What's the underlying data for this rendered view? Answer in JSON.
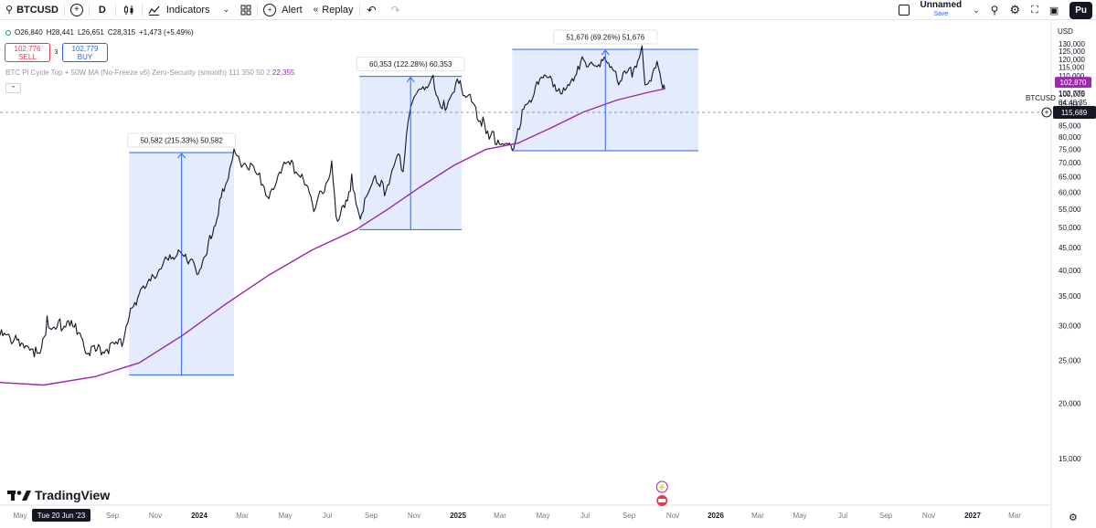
{
  "toolbar": {
    "symbol": "BTCUSD",
    "interval": "D",
    "indicators_label": "Indicators",
    "alert_label": "Alert",
    "replay_label": "Replay",
    "layout_name": "Unnamed",
    "save_label": "Save",
    "publish_label": "Pu"
  },
  "legend": {
    "open": "O26,840",
    "high": "H28,441",
    "low": "L26,651",
    "close": "C28,315",
    "change": "+1,473 (+5.49%)"
  },
  "trade": {
    "sell_price": "102,776",
    "sell_label": "SELL",
    "spread": "3",
    "buy_price": "102,779",
    "buy_label": "BUY"
  },
  "indicator": {
    "label": "BTC Pi Cycle Top + 50W MA (No-Freeze v6) Zero-Security (smooth) 111 350 50 2",
    "value": "22,355"
  },
  "brand": {
    "name": "TradingView"
  },
  "price_axis": {
    "currency": "USD",
    "crosshair_price": "115,689",
    "ma_label": "102,870",
    "last_price": "102,779",
    "countdown": "04:40:35",
    "symbol_label": "BTCUSD"
  },
  "colors": {
    "candle": "#131722",
    "ma": "#9c27b0",
    "range_fill": "#dfe8fb",
    "range_line": "#2962ff",
    "ma_label_bg": "#9c27b0"
  },
  "chart_data": {
    "type": "line",
    "symbol": "BTCUSD",
    "ylim": [
      12000,
      135000
    ],
    "y_scale": "log",
    "y_ticks": [
      15000,
      20000,
      25000,
      30000,
      35000,
      40000,
      45000,
      50000,
      55000,
      60000,
      65000,
      70000,
      75000,
      80000,
      85000,
      90000,
      95000,
      100000,
      105000,
      110000,
      115000,
      120000,
      125000,
      130000
    ],
    "x_ticks": [
      "May",
      "Tue 20 Jun '23",
      "Sep",
      "Nov",
      "2024",
      "Mar",
      "May",
      "Jul",
      "Sep",
      "Nov",
      "2025",
      "Mar",
      "May",
      "Jul",
      "Sep",
      "Nov",
      "2026",
      "Mar",
      "May",
      "Jul",
      "Sep",
      "Nov",
      "2027",
      "Mar"
    ],
    "x_start": "2023-04-20",
    "x_end": "2027-03-25",
    "series": [
      {
        "name": "BTCUSD",
        "points": [
          [
            "2023-04-20",
            28500
          ],
          [
            "2023-05-10",
            27800
          ],
          [
            "2023-06-01",
            27000
          ],
          [
            "2023-06-15",
            25500
          ],
          [
            "2023-06-25",
            30500
          ],
          [
            "2023-07-15",
            30200
          ],
          [
            "2023-08-10",
            29500
          ],
          [
            "2023-08-20",
            26000
          ],
          [
            "2023-09-15",
            26500
          ],
          [
            "2023-10-10",
            27500
          ],
          [
            "2023-10-24",
            34000
          ],
          [
            "2023-11-15",
            37000
          ],
          [
            "2023-12-10",
            43500
          ],
          [
            "2024-01-15",
            42500
          ],
          [
            "2024-01-23",
            39500
          ],
          [
            "2024-02-10",
            47500
          ],
          [
            "2024-02-28",
            62000
          ],
          [
            "2024-03-13",
            73000
          ],
          [
            "2024-04-01",
            69000
          ],
          [
            "2024-04-20",
            64000
          ],
          [
            "2024-05-01",
            58000
          ],
          [
            "2024-05-20",
            70000
          ],
          [
            "2024-06-10",
            68000
          ],
          [
            "2024-07-05",
            55000
          ],
          [
            "2024-07-28",
            68500
          ],
          [
            "2024-08-05",
            50000
          ],
          [
            "2024-08-25",
            64000
          ],
          [
            "2024-09-06",
            53000
          ],
          [
            "2024-09-27",
            65500
          ],
          [
            "2024-10-10",
            60000
          ],
          [
            "2024-10-29",
            72500
          ],
          [
            "2024-11-05",
            68000
          ],
          [
            "2024-11-12",
            88000
          ],
          [
            "2024-11-22",
            99000
          ],
          [
            "2024-12-05",
            101000
          ],
          [
            "2024-12-17",
            107000
          ],
          [
            "2024-12-30",
            92500
          ],
          [
            "2025-01-20",
            106000
          ],
          [
            "2025-02-05",
            98000
          ],
          [
            "2025-02-25",
            86000
          ],
          [
            "2025-03-10",
            80000
          ],
          [
            "2025-04-07",
            76000
          ],
          [
            "2025-04-25",
            94500
          ],
          [
            "2025-05-22",
            110000
          ],
          [
            "2025-06-22",
            100500
          ],
          [
            "2025-07-14",
            122000
          ],
          [
            "2025-08-02",
            113000
          ],
          [
            "2025-08-14",
            123500
          ],
          [
            "2025-09-01",
            108000
          ],
          [
            "2025-09-22",
            112500
          ],
          [
            "2025-10-06",
            125500
          ],
          [
            "2025-10-10",
            105000
          ],
          [
            "2025-10-27",
            115500
          ],
          [
            "2025-11-04",
            101500
          ],
          [
            "2025-11-07",
            102779
          ]
        ]
      },
      {
        "name": "50W MA",
        "points": [
          [
            "2023-04-20",
            22300
          ],
          [
            "2023-06-20",
            22000
          ],
          [
            "2023-09-01",
            23000
          ],
          [
            "2023-11-01",
            24700
          ],
          [
            "2024-01-01",
            28500
          ],
          [
            "2024-03-01",
            33500
          ],
          [
            "2024-05-01",
            39000
          ],
          [
            "2024-07-01",
            44500
          ],
          [
            "2024-09-01",
            49500
          ],
          [
            "2024-10-15",
            55000
          ],
          [
            "2024-12-01",
            62000
          ],
          [
            "2025-01-15",
            69000
          ],
          [
            "2025-03-01",
            75000
          ],
          [
            "2025-04-15",
            77500
          ],
          [
            "2025-06-01",
            84000
          ],
          [
            "2025-07-15",
            91000
          ],
          [
            "2025-09-01",
            97000
          ],
          [
            "2025-10-15",
            101000
          ],
          [
            "2025-11-07",
            102870
          ]
        ]
      }
    ],
    "annotations": [
      {
        "type": "price_range",
        "from_date": "2023-10-18",
        "to_date": "2024-03-13",
        "low": 23200,
        "high": 73800,
        "label": "50,582 (215.33%) 50,582"
      },
      {
        "type": "price_range",
        "from_date": "2024-09-05",
        "to_date": "2025-01-26",
        "low": 49400,
        "high": 109700,
        "label": "60,353 (122.28%) 60,353"
      },
      {
        "type": "price_range",
        "from_date": "2025-04-07",
        "to_date": "2025-12-24",
        "low": 74500,
        "high": 126300,
        "label": "51,676 (69.26%) 51,676"
      }
    ]
  }
}
